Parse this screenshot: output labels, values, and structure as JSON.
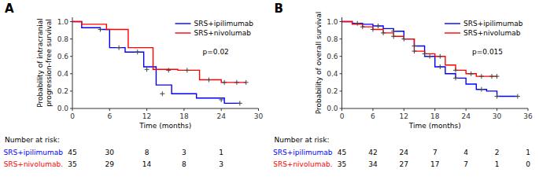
{
  "chart_data": [
    {
      "type": "step",
      "title": "A",
      "y_label": "Probability of intracranial\nprogression-free survival",
      "x_label": "Time (months)",
      "xlim": [
        0,
        30
      ],
      "ylim": [
        0,
        1.05
      ],
      "xticks": [
        0,
        6,
        12,
        18,
        24,
        30
      ],
      "yticks": [
        {
          "value": 0,
          "label": "0.0"
        },
        0.2,
        0.4,
        0.6,
        0.8,
        {
          "value": 1,
          "label": "1.0"
        }
      ],
      "grid": false,
      "legend": "upper-right",
      "annotations": [
        {
          "text": "p=0.02"
        }
      ],
      "censor_color": "#444444",
      "series": [
        {
          "name": "SRS+ipilimumab",
          "color": "#0000ff",
          "marker": "+",
          "x": [
            0,
            1.5,
            3.0,
            4.5,
            5.5,
            6.0,
            7.0,
            8.5,
            10.0,
            11.5,
            12.0,
            13.5,
            14.5,
            16.0,
            18.0,
            20.0,
            22.0,
            24.5,
            27.0
          ],
          "values": [
            1.0,
            0.93,
            0.93,
            0.91,
            0.91,
            0.7,
            0.7,
            0.65,
            0.65,
            0.48,
            0.48,
            0.27,
            0.27,
            0.17,
            0.17,
            0.12,
            0.12,
            0.06,
            0.06
          ],
          "censor_x": [
            4.5,
            10.5,
            14.5,
            24.0,
            27.0
          ],
          "censor_values": [
            0.91,
            0.65,
            0.17,
            0.1,
            0.06
          ]
        },
        {
          "name": "SRS+nivolumab",
          "color": "#ff0000",
          "marker": "+",
          "x": [
            0,
            1.5,
            3.5,
            5.5,
            6.5,
            9.0,
            11.0,
            13.0,
            15.0,
            17.0,
            18.5,
            20.5,
            22.0,
            24.0,
            26.0,
            28.0
          ],
          "values": [
            1.0,
            0.97,
            0.97,
            0.91,
            0.91,
            0.7,
            0.7,
            0.45,
            0.45,
            0.44,
            0.44,
            0.33,
            0.33,
            0.3,
            0.3,
            0.3
          ],
          "censor_x": [
            7.5,
            12.0,
            15.5,
            18.5,
            22.0,
            24.5,
            26.5,
            28.0
          ],
          "censor_values": [
            0.7,
            0.45,
            0.44,
            0.44,
            0.33,
            0.3,
            0.3,
            0.3
          ]
        }
      ],
      "risk_table": {
        "header": "Number at risk:",
        "x": [
          0,
          6,
          12,
          18,
          24
        ],
        "rows": [
          {
            "label": "SRS+ipilimumab",
            "values": [
              45,
              30,
              8,
              3,
              1
            ]
          },
          {
            "label": "SRS+nivolumab.",
            "values": [
              35,
              29,
              14,
              8,
              3
            ]
          }
        ]
      }
    },
    {
      "type": "step",
      "title": "B",
      "y_label": "Probability of overall survival",
      "x_label": "Time (months)",
      "xlim": [
        0,
        36
      ],
      "ylim": [
        0,
        1.05
      ],
      "xticks": [
        0,
        6,
        12,
        18,
        24,
        30,
        36
      ],
      "yticks": [
        {
          "value": 0,
          "label": "0.0"
        },
        0.2,
        0.4,
        0.6,
        0.8,
        {
          "value": 1,
          "label": "1.0"
        }
      ],
      "grid": false,
      "legend": "upper-right",
      "annotations": [
        {
          "text": "p=0.015"
        }
      ],
      "censor_color": "#444444",
      "series": [
        {
          "name": "SRS+ipilimumab",
          "color": "#0000ff",
          "marker": "+",
          "x": [
            0,
            2,
            3,
            4,
            5,
            6,
            7,
            8,
            9,
            10,
            11,
            12,
            13,
            14,
            15,
            16,
            17,
            18,
            19,
            20,
            21,
            22,
            23,
            24,
            25,
            26,
            27,
            28,
            29,
            30,
            31,
            32,
            34
          ],
          "values": [
            1.0,
            0.98,
            0.98,
            0.97,
            0.97,
            0.95,
            0.95,
            0.92,
            0.92,
            0.89,
            0.89,
            0.8,
            0.8,
            0.72,
            0.72,
            0.6,
            0.6,
            0.48,
            0.48,
            0.4,
            0.4,
            0.35,
            0.35,
            0.28,
            0.28,
            0.22,
            0.22,
            0.2,
            0.2,
            0.14,
            0.14,
            0.14,
            0.14
          ],
          "censor_x": [
            3,
            7,
            10,
            14,
            17,
            19,
            22,
            27,
            30,
            34
          ],
          "censor_values": [
            0.98,
            0.95,
            0.89,
            0.72,
            0.6,
            0.48,
            0.35,
            0.22,
            0.14,
            0.14
          ]
        },
        {
          "name": "SRS+nivolumab",
          "color": "#ff0000",
          "marker": "+",
          "x": [
            0,
            2,
            3,
            4,
            5,
            6,
            7,
            8,
            9,
            10,
            11,
            12,
            13,
            14,
            15,
            16,
            17,
            18,
            19,
            20,
            21,
            22,
            23,
            24,
            25,
            26,
            27,
            28,
            29,
            30
          ],
          "values": [
            1.0,
            0.97,
            0.97,
            0.94,
            0.94,
            0.91,
            0.91,
            0.87,
            0.87,
            0.83,
            0.83,
            0.8,
            0.8,
            0.66,
            0.66,
            0.63,
            0.63,
            0.6,
            0.6,
            0.5,
            0.5,
            0.44,
            0.44,
            0.4,
            0.4,
            0.37,
            0.37,
            0.37,
            0.37,
            0.37
          ],
          "censor_x": [
            4,
            6,
            8,
            10,
            12,
            14,
            16,
            19,
            22,
            25,
            27,
            29,
            30
          ],
          "censor_values": [
            0.94,
            0.91,
            0.87,
            0.83,
            0.8,
            0.66,
            0.63,
            0.6,
            0.44,
            0.4,
            0.37,
            0.37,
            0.37
          ]
        }
      ],
      "risk_table": {
        "header": "Number at risk:",
        "x": [
          0,
          6,
          12,
          18,
          24,
          30,
          36
        ],
        "rows": [
          {
            "label": "SRS+ipilimumab",
            "values": [
              45,
              42,
              24,
              7,
              4,
              2,
              1
            ]
          },
          {
            "label": "SRS+nivolumab.",
            "values": [
              35,
              34,
              27,
              17,
              7,
              1,
              0
            ]
          }
        ]
      }
    }
  ]
}
